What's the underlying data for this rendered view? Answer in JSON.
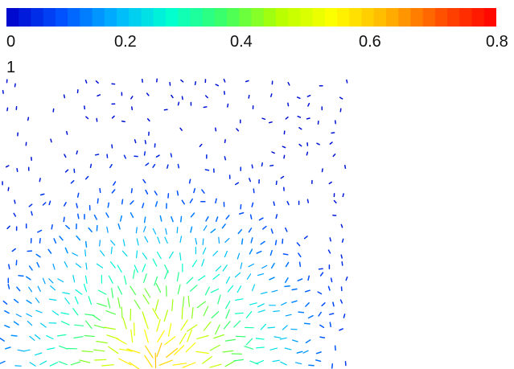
{
  "chart_data": {
    "type": "vector-field",
    "colorbar": {
      "min": 0,
      "max": 0.8,
      "ticks": [
        "0",
        "0.2",
        "0.4",
        "0.6",
        "0.8"
      ],
      "tick_values": [
        0,
        0.2,
        0.4,
        0.6,
        0.8
      ],
      "extra_label": "1",
      "colormap": [
        "#0000c8",
        "#0050ff",
        "#00b4ff",
        "#00ffd2",
        "#3cff64",
        "#b4ff00",
        "#ffff00",
        "#ffb400",
        "#ff5000",
        "#ff0000"
      ]
    },
    "field": {
      "grid_columns": 30,
      "grid_rows": 24,
      "source": {
        "x": 0.45,
        "y": 1.0
      },
      "peak_magnitude": 0.6,
      "background": "#ffffff"
    }
  }
}
